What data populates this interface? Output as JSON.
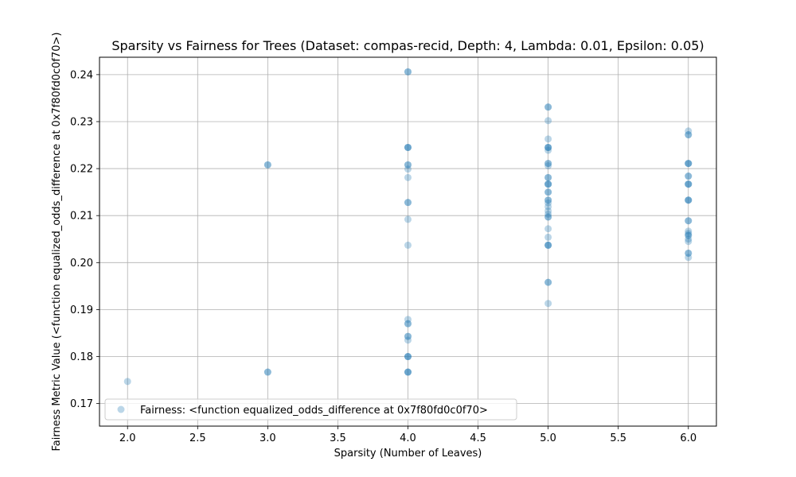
{
  "chart_data": {
    "type": "scatter",
    "title": "Sparsity vs Fairness for Trees (Dataset: compas-recid, Depth: 4, Lambda: 0.01, Epsilon: 0.05)",
    "xlabel": "Sparsity (Number of Leaves)",
    "ylabel": "Fairness Metric Value (<function equalized_odds_difference at 0x7f80fd0c0f70>)",
    "xlim": [
      1.8,
      6.2
    ],
    "ylim": [
      0.1652,
      0.2437
    ],
    "x_ticks": [
      2.0,
      2.5,
      3.0,
      3.5,
      4.0,
      4.5,
      5.0,
      5.5,
      6.0
    ],
    "x_tick_labels": [
      "2.0",
      "2.5",
      "3.0",
      "3.5",
      "4.0",
      "4.5",
      "5.0",
      "5.5",
      "6.0"
    ],
    "y_ticks": [
      0.17,
      0.18,
      0.19,
      0.2,
      0.21,
      0.22,
      0.23,
      0.24
    ],
    "y_tick_labels": [
      "0.17",
      "0.18",
      "0.19",
      "0.20",
      "0.21",
      "0.22",
      "0.23",
      "0.24"
    ],
    "grid": true,
    "legend_position": "lower-left",
    "color": "#1f77b4",
    "series": [
      {
        "name": "Fairness: <function equalized_odds_difference at 0x7f80fd0c0f70>",
        "points": [
          {
            "x": 2,
            "y": 0.1747
          },
          {
            "x": 3,
            "y": 0.2208
          },
          {
            "x": 3,
            "y": 0.2208
          },
          {
            "x": 3,
            "y": 0.1767
          },
          {
            "x": 3,
            "y": 0.1767
          },
          {
            "x": 4,
            "y": 0.2406
          },
          {
            "x": 4,
            "y": 0.2406
          },
          {
            "x": 4,
            "y": 0.2245
          },
          {
            "x": 4,
            "y": 0.2245
          },
          {
            "x": 4,
            "y": 0.2245
          },
          {
            "x": 4,
            "y": 0.2208
          },
          {
            "x": 4,
            "y": 0.2208
          },
          {
            "x": 4,
            "y": 0.2199
          },
          {
            "x": 4,
            "y": 0.2181
          },
          {
            "x": 4,
            "y": 0.2128
          },
          {
            "x": 4,
            "y": 0.2128
          },
          {
            "x": 4,
            "y": 0.2092
          },
          {
            "x": 4,
            "y": 0.2037
          },
          {
            "x": 4,
            "y": 0.1879
          },
          {
            "x": 4,
            "y": 0.187
          },
          {
            "x": 4,
            "y": 0.187
          },
          {
            "x": 4,
            "y": 0.1843
          },
          {
            "x": 4,
            "y": 0.1843
          },
          {
            "x": 4,
            "y": 0.1835
          },
          {
            "x": 4,
            "y": 0.18
          },
          {
            "x": 4,
            "y": 0.18
          },
          {
            "x": 4,
            "y": 0.18
          },
          {
            "x": 4,
            "y": 0.1767
          },
          {
            "x": 4,
            "y": 0.1767
          },
          {
            "x": 4,
            "y": 0.1767
          },
          {
            "x": 5,
            "y": 0.2331
          },
          {
            "x": 5,
            "y": 0.2331
          },
          {
            "x": 5,
            "y": 0.2302
          },
          {
            "x": 5,
            "y": 0.2263
          },
          {
            "x": 5,
            "y": 0.2245
          },
          {
            "x": 5,
            "y": 0.2245
          },
          {
            "x": 5,
            "y": 0.2245
          },
          {
            "x": 5,
            "y": 0.2239
          },
          {
            "x": 5,
            "y": 0.2211
          },
          {
            "x": 5,
            "y": 0.2211
          },
          {
            "x": 5,
            "y": 0.2206
          },
          {
            "x": 5,
            "y": 0.2181
          },
          {
            "x": 5,
            "y": 0.2181
          },
          {
            "x": 5,
            "y": 0.2167
          },
          {
            "x": 5,
            "y": 0.2167
          },
          {
            "x": 5,
            "y": 0.2167
          },
          {
            "x": 5,
            "y": 0.215
          },
          {
            "x": 5,
            "y": 0.215
          },
          {
            "x": 5,
            "y": 0.2133
          },
          {
            "x": 5,
            "y": 0.2133
          },
          {
            "x": 5,
            "y": 0.2127
          },
          {
            "x": 5,
            "y": 0.2119
          },
          {
            "x": 5,
            "y": 0.211
          },
          {
            "x": 5,
            "y": 0.2103
          },
          {
            "x": 5,
            "y": 0.2097
          },
          {
            "x": 5,
            "y": 0.2097
          },
          {
            "x": 5,
            "y": 0.2072
          },
          {
            "x": 5,
            "y": 0.2054
          },
          {
            "x": 5,
            "y": 0.2037
          },
          {
            "x": 5,
            "y": 0.2037
          },
          {
            "x": 5,
            "y": 0.2037
          },
          {
            "x": 5,
            "y": 0.1958
          },
          {
            "x": 5,
            "y": 0.1958
          },
          {
            "x": 5,
            "y": 0.1913
          },
          {
            "x": 6,
            "y": 0.228
          },
          {
            "x": 6,
            "y": 0.2272
          },
          {
            "x": 6,
            "y": 0.2272
          },
          {
            "x": 6,
            "y": 0.2211
          },
          {
            "x": 6,
            "y": 0.2211
          },
          {
            "x": 6,
            "y": 0.2211
          },
          {
            "x": 6,
            "y": 0.2184
          },
          {
            "x": 6,
            "y": 0.2184
          },
          {
            "x": 6,
            "y": 0.2167
          },
          {
            "x": 6,
            "y": 0.2167
          },
          {
            "x": 6,
            "y": 0.2167
          },
          {
            "x": 6,
            "y": 0.2133
          },
          {
            "x": 6,
            "y": 0.2133
          },
          {
            "x": 6,
            "y": 0.2133
          },
          {
            "x": 6,
            "y": 0.2089
          },
          {
            "x": 6,
            "y": 0.2089
          },
          {
            "x": 6,
            "y": 0.2067
          },
          {
            "x": 6,
            "y": 0.2062
          },
          {
            "x": 6,
            "y": 0.2058
          },
          {
            "x": 6,
            "y": 0.2058
          },
          {
            "x": 6,
            "y": 0.205
          },
          {
            "x": 6,
            "y": 0.2045
          },
          {
            "x": 6,
            "y": 0.202
          },
          {
            "x": 6,
            "y": 0.202
          },
          {
            "x": 6,
            "y": 0.2011
          }
        ]
      }
    ]
  }
}
